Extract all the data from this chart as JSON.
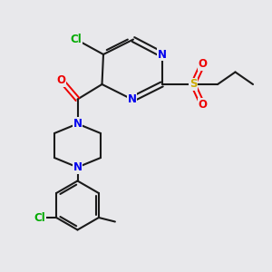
{
  "bg_color": "#e8e8eb",
  "bond_color": "#1a1a1a",
  "bond_width": 1.5,
  "atom_colors": {
    "C": "#1a1a1a",
    "N": "#0000ee",
    "O": "#ee0000",
    "S": "#ccaa00",
    "Cl": "#00aa00"
  },
  "font_size": 8.5
}
